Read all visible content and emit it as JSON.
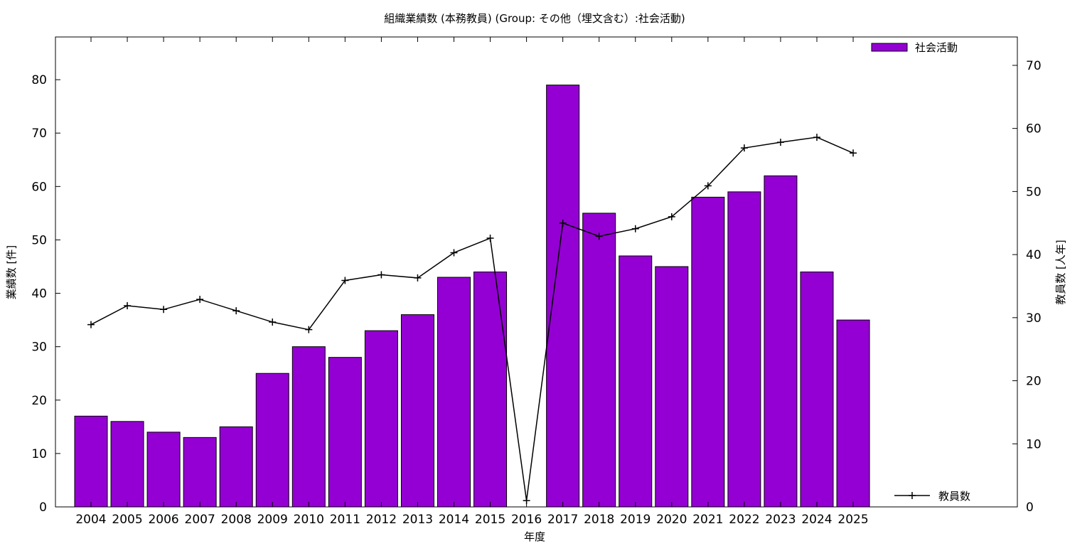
{
  "chart_data": {
    "type": "bar",
    "title": "組織業績数 (本務教員) (Group: その他（埋文含む）:社会活動)",
    "xlabel": "年度",
    "ylabel_left": "業績数 [件]",
    "ylabel_right": "教員数 [人年]",
    "categories": [
      "2004",
      "2005",
      "2006",
      "2007",
      "2008",
      "2009",
      "2010",
      "2011",
      "2012",
      "2013",
      "2014",
      "2015",
      "2016",
      "2017",
      "2018",
      "2019",
      "2020",
      "2021",
      "2022",
      "2023",
      "2024",
      "2025"
    ],
    "series": [
      {
        "name": "社会活動",
        "kind": "bar",
        "axis": "left",
        "color": "#9400d3",
        "values": [
          17,
          16,
          14,
          13,
          15,
          25,
          30,
          28,
          33,
          36,
          43,
          44,
          0,
          79,
          55,
          47,
          45,
          58,
          59,
          62,
          44,
          35
        ]
      },
      {
        "name": "教員数",
        "kind": "line",
        "axis": "right",
        "color": "#000000",
        "values": [
          28.9,
          31.9,
          31.3,
          32.9,
          31.1,
          29.3,
          28.1,
          35.9,
          36.8,
          36.3,
          40.3,
          42.6,
          1.0,
          45.0,
          42.9,
          44.1,
          46.0,
          50.9,
          56.9,
          57.8,
          58.6,
          56.1
        ]
      }
    ],
    "ylim_left": [
      0,
      88
    ],
    "ylim_right": [
      0,
      74.5
    ],
    "yticks_left": [
      "0",
      "10",
      "20",
      "30",
      "40",
      "50",
      "60",
      "70",
      "80"
    ],
    "yticks_right": [
      "0",
      "10",
      "20",
      "30",
      "40",
      "50",
      "60",
      "70"
    ],
    "legend_placement": "top-right (bars), bottom-right (line)",
    "grid": false
  }
}
